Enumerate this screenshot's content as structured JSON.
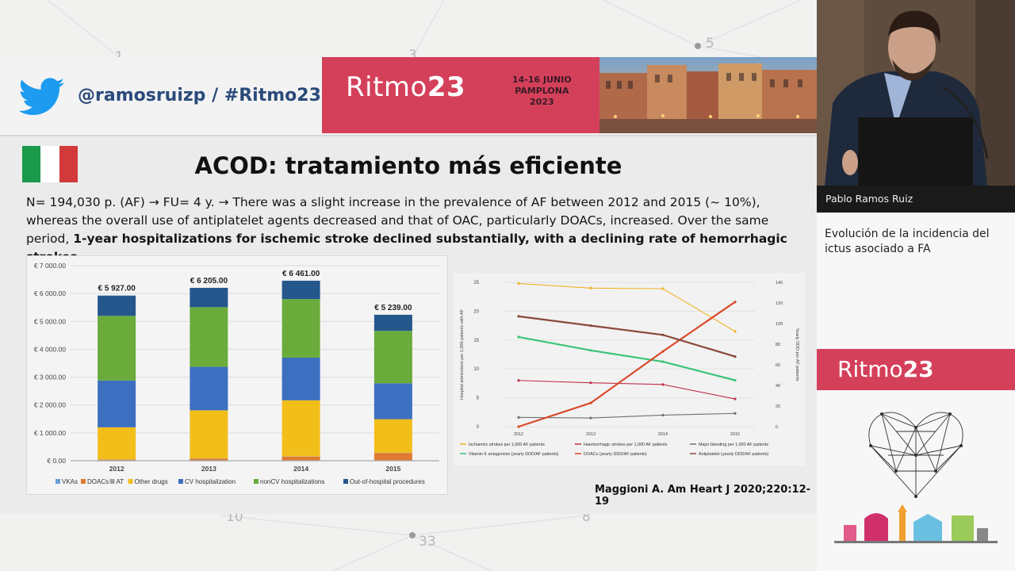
{
  "background": {
    "numbers": [
      "1",
      "3",
      "5",
      "10",
      "33",
      "8"
    ]
  },
  "header": {
    "twitter_icon": "twitter-bird-icon",
    "handle": "@ramosruizp  /  #Ritmo23",
    "event_brand_light": "Ritmo",
    "event_brand_bold": "23",
    "event_dates": [
      "14-16 JUNIO",
      "PAMPLONA",
      "2023"
    ]
  },
  "slide": {
    "flag_colors": [
      "#1a9a4a",
      "#ffffff",
      "#d23a3a"
    ],
    "title": "ACOD: tratamiento más eficiente",
    "body_plain": "N= 194,030 p. (AF) → FU= 4 y. → There was a slight increase in the prevalence of AF between 2012 and 2015 (~ 10%), whereas the overall use of antiplatelet agents decreased and that of OAC, particularly DOACs, increased. Over the same period, ",
    "body_bold": "1-year hospitalizations for ischemic stroke declined substantially, with a declining rate of hemorrhagic strokes",
    "body_end": ".",
    "citation": "Maggioni A. Am Heart J 2020;220:12-19"
  },
  "chart_data": [
    {
      "type": "bar",
      "stacked": true,
      "categories": [
        "2012",
        "2013",
        "2014",
        "2015"
      ],
      "totals_labels": [
        "€ 5 927.00",
        "€ 6 205.00",
        "€ 6 461.00",
        "€ 5 239.00"
      ],
      "y_ticks": [
        "€ 0.00",
        "€ 1 000.00",
        "€ 2 000.00",
        "€ 3 000.00",
        "€ 4 000.00",
        "€ 5 000.00",
        "€ 6 000.00",
        "€ 7 000.00"
      ],
      "ylim": [
        0,
        7000
      ],
      "series": [
        {
          "name": "VKAs",
          "color": "#6a9fd6",
          "values": [
            20,
            20,
            20,
            20
          ]
        },
        {
          "name": "DOACs",
          "color": "#e07a30",
          "values": [
            20,
            60,
            130,
            260
          ]
        },
        {
          "name": "AT",
          "color": "#a0a0a0",
          "values": [
            10,
            10,
            10,
            10
          ]
        },
        {
          "name": "Other drugs",
          "color": "#f2be1a",
          "values": [
            1150,
            1720,
            2010,
            1200
          ]
        },
        {
          "name": "CV hospitalization",
          "color": "#3d6fc0",
          "values": [
            1680,
            1560,
            1530,
            1290
          ]
        },
        {
          "name": "nonCV hospitalizations",
          "color": "#6aab3c",
          "values": [
            2320,
            2140,
            2100,
            1880
          ]
        },
        {
          "name": "Out-of-hospital procedures",
          "color": "#24578c",
          "values": [
            727,
            695,
            661,
            579
          ]
        }
      ],
      "legend_position": "bottom"
    },
    {
      "type": "line",
      "x": [
        "2012",
        "2013",
        "2014",
        "2015"
      ],
      "y_left_label": "Hospital admissions per 1,000 patients with AF",
      "y_right_label": "Yearly DDD per AF patients",
      "y_left_ticks": [
        "0",
        "5",
        "10",
        "15",
        "20",
        "25"
      ],
      "y_right_ticks": [
        "0",
        "20",
        "40",
        "60",
        "80",
        "100",
        "120",
        "140"
      ],
      "ylim_left": [
        0,
        25
      ],
      "ylim_right": [
        0,
        140
      ],
      "series": [
        {
          "name": "Ischaemic strokes per 1,000 AF patients",
          "axis": "left",
          "color": "#f0b429",
          "values": [
            24.8,
            24.0,
            23.9,
            16.5
          ]
        },
        {
          "name": "Haemorrhagic strokes per 1,000 AF patients",
          "axis": "left",
          "color": "#c0304a",
          "values": [
            8.0,
            7.6,
            7.3,
            4.8
          ]
        },
        {
          "name": "Major bleeding per 1,000 AF patients",
          "axis": "left",
          "color": "#707070",
          "values": [
            1.6,
            1.5,
            2.0,
            2.3
          ]
        },
        {
          "name": "Vitamin K antagonists (yearly DDD/AF patients)",
          "axis": "right",
          "color": "#3cc47a",
          "values": [
            87,
            74,
            63,
            45
          ]
        },
        {
          "name": "DOACs (yearly DDD/AF patients)",
          "axis": "right",
          "color": "#d94a2a",
          "values": [
            0,
            23,
            73,
            121
          ]
        },
        {
          "name": "Antiplatelet (yearly DDD/AF patients)",
          "axis": "right",
          "color": "#8a4a3a",
          "values": [
            107,
            98,
            89,
            68
          ]
        }
      ],
      "legend_position": "bottom"
    }
  ],
  "speaker": {
    "name": "Pablo Ramos Ruiz"
  },
  "sidebar": {
    "talk_title": "Evolución de la incidencia del ictus asociado a FA",
    "brand_light": "Ritmo",
    "brand_bold": "23"
  }
}
